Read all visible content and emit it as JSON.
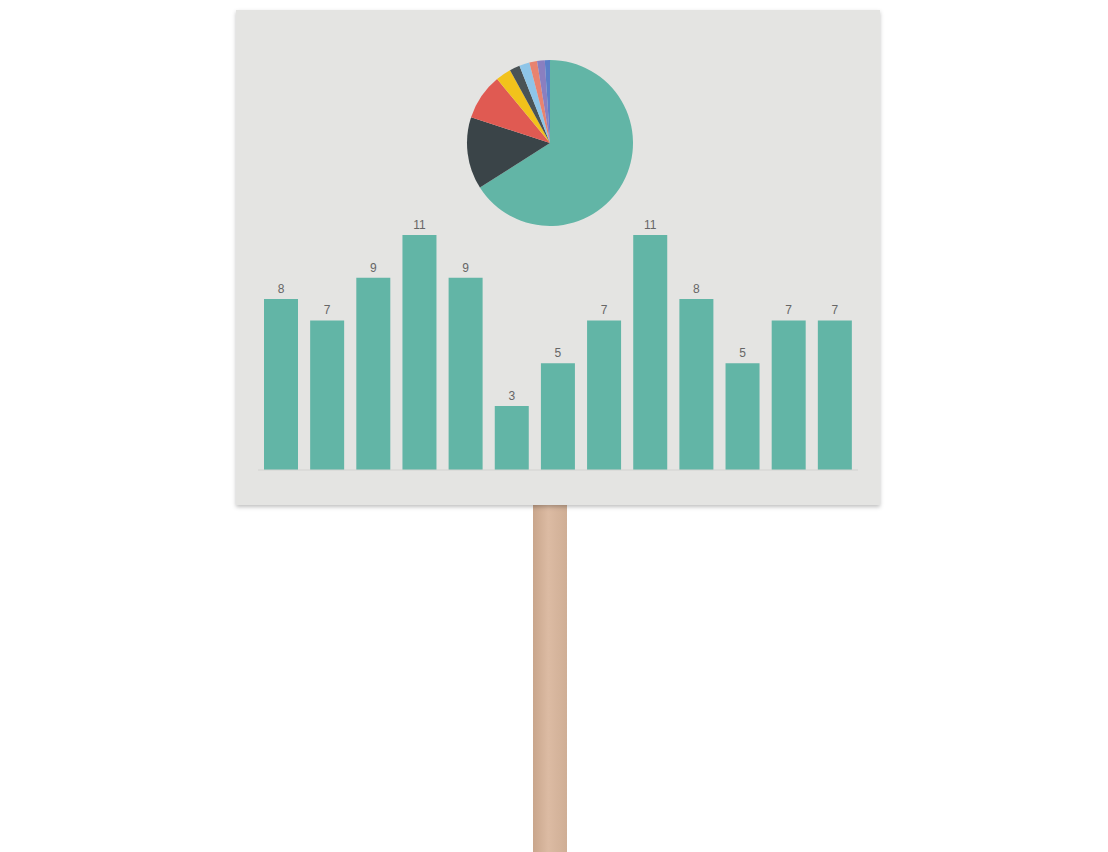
{
  "chart_data": [
    {
      "type": "pie",
      "values": [
        66,
        14,
        9,
        3,
        2,
        2,
        1.5,
        1.5,
        1
      ],
      "colors": [
        "#62b5a6",
        "#3a4448",
        "#e05a52",
        "#f2c21b",
        "#4a5356",
        "#8ec5e8",
        "#e8836f",
        "#8a7fc0",
        "#5a7fc8"
      ]
    },
    {
      "type": "bar",
      "categories": [
        null,
        null,
        null,
        null,
        null,
        null,
        null,
        null,
        null,
        null,
        null,
        null,
        null
      ],
      "values": [
        8,
        7,
        9,
        11,
        9,
        3,
        5,
        7,
        11,
        8,
        5,
        7,
        7
      ],
      "color": "#62b5a6",
      "ylim": [
        0,
        11
      ],
      "data_labels": true,
      "tick_labels": false
    }
  ]
}
